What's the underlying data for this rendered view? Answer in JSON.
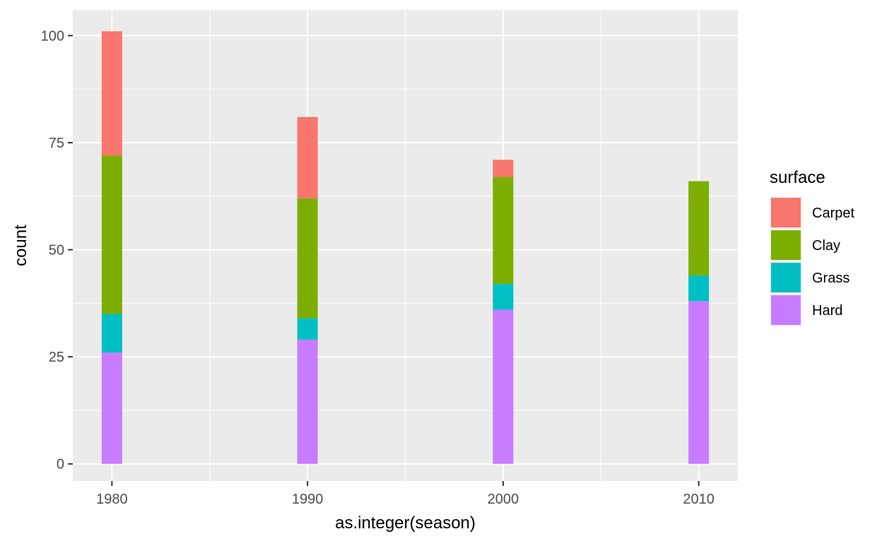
{
  "chart_data": {
    "type": "bar",
    "stacked": true,
    "title": "",
    "xlabel": "as.integer(season)",
    "ylabel": "count",
    "categories": [
      "1980",
      "1990",
      "2000",
      "2010"
    ],
    "x": [
      1980,
      1990,
      2000,
      2010
    ],
    "ylim": [
      -4,
      106
    ],
    "xlim": [
      1978,
      2012
    ],
    "y_ticks": [
      0,
      25,
      50,
      75,
      100
    ],
    "x_ticks": [
      1980,
      1990,
      2000,
      2010
    ],
    "grid": true,
    "legend": {
      "title": "surface",
      "position": "right",
      "entries": [
        "Carpet",
        "Clay",
        "Grass",
        "Hard"
      ]
    },
    "series": [
      {
        "name": "Hard",
        "color": "#C77CFF",
        "values": [
          26,
          29,
          36,
          38
        ]
      },
      {
        "name": "Grass",
        "color": "#00BFC4",
        "values": [
          9,
          5,
          6,
          6
        ]
      },
      {
        "name": "Clay",
        "color": "#7CAE00",
        "values": [
          37,
          28,
          25,
          22
        ]
      },
      {
        "name": "Carpet",
        "color": "#F8766D",
        "values": [
          29,
          19,
          4,
          0
        ]
      }
    ],
    "colors": {
      "panel_background": "#EBEBEB",
      "grid_line": "#FFFFFF",
      "tick_color": "#333333"
    }
  }
}
